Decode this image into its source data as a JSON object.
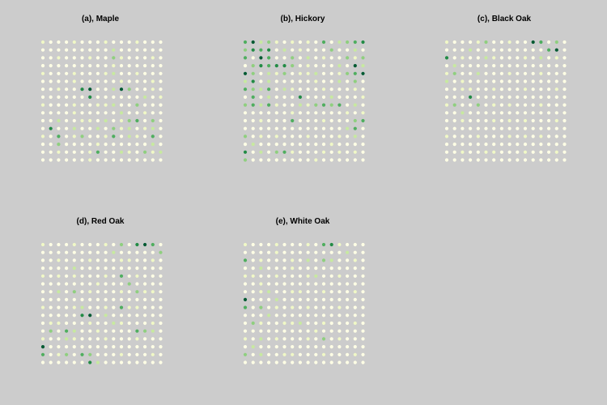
{
  "chart_data": [
    {
      "type": "scatter",
      "title": "(a), Maple",
      "grid_size": 16,
      "palette": [
        "#ffffe5",
        "#f0f8c6",
        "#c7e9a0",
        "#8fcf7f",
        "#4fae5f",
        "#228b45",
        "#005a32"
      ],
      "overrides": [
        [
          9,
          1,
          2
        ],
        [
          9,
          2,
          3
        ],
        [
          9,
          3,
          1
        ],
        [
          9,
          4,
          2
        ],
        [
          4,
          5,
          1
        ],
        [
          10,
          5,
          1
        ],
        [
          14,
          5,
          1
        ],
        [
          5,
          6,
          5
        ],
        [
          6,
          6,
          6
        ],
        [
          9,
          6,
          2
        ],
        [
          10,
          6,
          6
        ],
        [
          11,
          6,
          3
        ],
        [
          6,
          7,
          5
        ],
        [
          13,
          7,
          2
        ],
        [
          15,
          7,
          1
        ],
        [
          7,
          8,
          1
        ],
        [
          9,
          8,
          2
        ],
        [
          12,
          8,
          3
        ],
        [
          4,
          9,
          1
        ],
        [
          10,
          9,
          2
        ],
        [
          13,
          9,
          1
        ],
        [
          2,
          10,
          2
        ],
        [
          5,
          10,
          1
        ],
        [
          8,
          10,
          2
        ],
        [
          11,
          10,
          3
        ],
        [
          12,
          10,
          4
        ],
        [
          14,
          10,
          3
        ],
        [
          1,
          11,
          5
        ],
        [
          4,
          11,
          2
        ],
        [
          7,
          11,
          2
        ],
        [
          9,
          11,
          3
        ],
        [
          10,
          11,
          1
        ],
        [
          11,
          11,
          2
        ],
        [
          13,
          11,
          1
        ],
        [
          14,
          11,
          2
        ],
        [
          2,
          12,
          4
        ],
        [
          5,
          12,
          3
        ],
        [
          9,
          12,
          4
        ],
        [
          11,
          12,
          2
        ],
        [
          14,
          12,
          4
        ],
        [
          2,
          13,
          3
        ],
        [
          7,
          13,
          1
        ],
        [
          14,
          13,
          2
        ],
        [
          7,
          14,
          4
        ],
        [
          10,
          14,
          2
        ],
        [
          11,
          14,
          1
        ],
        [
          13,
          14,
          3
        ],
        [
          15,
          14,
          2
        ],
        [
          6,
          15,
          1
        ]
      ]
    },
    {
      "type": "scatter",
      "title": "(b), Hickory",
      "grid_size": 16,
      "palette": [
        "#ffffe5",
        "#f0f8c6",
        "#c7e9a0",
        "#8fcf7f",
        "#4fae5f",
        "#228b45",
        "#005a32"
      ],
      "overrides": [
        [
          0,
          0,
          4
        ],
        [
          1,
          0,
          6
        ],
        [
          2,
          0,
          2
        ],
        [
          3,
          0,
          3
        ],
        [
          6,
          0,
          1
        ],
        [
          10,
          0,
          4
        ],
        [
          12,
          0,
          2
        ],
        [
          13,
          0,
          3
        ],
        [
          14,
          0,
          4
        ],
        [
          15,
          0,
          5
        ],
        [
          0,
          1,
          3
        ],
        [
          1,
          1,
          5
        ],
        [
          2,
          1,
          4
        ],
        [
          3,
          1,
          5
        ],
        [
          5,
          1,
          2
        ],
        [
          7,
          1,
          1
        ],
        [
          11,
          1,
          3
        ],
        [
          14,
          1,
          2
        ],
        [
          0,
          2,
          4
        ],
        [
          2,
          2,
          6
        ],
        [
          3,
          2,
          4
        ],
        [
          6,
          2,
          3
        ],
        [
          8,
          2,
          2
        ],
        [
          10,
          2,
          1
        ],
        [
          13,
          2,
          3
        ],
        [
          15,
          2,
          3
        ],
        [
          1,
          3,
          3
        ],
        [
          2,
          3,
          5
        ],
        [
          3,
          3,
          4
        ],
        [
          4,
          3,
          5
        ],
        [
          5,
          3,
          5
        ],
        [
          6,
          3,
          3
        ],
        [
          8,
          3,
          1
        ],
        [
          12,
          3,
          2
        ],
        [
          14,
          3,
          6
        ],
        [
          15,
          3,
          2
        ],
        [
          0,
          4,
          6
        ],
        [
          1,
          4,
          3
        ],
        [
          3,
          4,
          2
        ],
        [
          5,
          4,
          3
        ],
        [
          7,
          4,
          1
        ],
        [
          9,
          4,
          2
        ],
        [
          13,
          4,
          3
        ],
        [
          14,
          4,
          4
        ],
        [
          15,
          4,
          6
        ],
        [
          0,
          5,
          2
        ],
        [
          1,
          5,
          5
        ],
        [
          3,
          5,
          2
        ],
        [
          9,
          5,
          1
        ],
        [
          12,
          5,
          2
        ],
        [
          14,
          5,
          3
        ],
        [
          0,
          6,
          4
        ],
        [
          1,
          6,
          3
        ],
        [
          2,
          6,
          2
        ],
        [
          3,
          6,
          4
        ],
        [
          5,
          6,
          2
        ],
        [
          10,
          6,
          1
        ],
        [
          1,
          7,
          4
        ],
        [
          3,
          7,
          2
        ],
        [
          7,
          7,
          5
        ],
        [
          11,
          7,
          2
        ],
        [
          15,
          7,
          1
        ],
        [
          0,
          8,
          3
        ],
        [
          1,
          8,
          4
        ],
        [
          2,
          8,
          2
        ],
        [
          3,
          8,
          4
        ],
        [
          7,
          8,
          2
        ],
        [
          9,
          8,
          3
        ],
        [
          10,
          8,
          4
        ],
        [
          11,
          8,
          3
        ],
        [
          12,
          8,
          4
        ],
        [
          14,
          8,
          2
        ],
        [
          6,
          9,
          1
        ],
        [
          13,
          9,
          1
        ],
        [
          15,
          9,
          1
        ],
        [
          6,
          10,
          4
        ],
        [
          14,
          10,
          3
        ],
        [
          15,
          10,
          4
        ],
        [
          13,
          11,
          2
        ],
        [
          14,
          11,
          4
        ],
        [
          0,
          12,
          3
        ],
        [
          2,
          12,
          1
        ],
        [
          8,
          12,
          1
        ],
        [
          14,
          12,
          2
        ],
        [
          1,
          13,
          2
        ],
        [
          11,
          13,
          1
        ],
        [
          0,
          14,
          5
        ],
        [
          2,
          14,
          2
        ],
        [
          4,
          14,
          3
        ],
        [
          5,
          14,
          4
        ],
        [
          12,
          14,
          1
        ],
        [
          0,
          15,
          3
        ],
        [
          9,
          15,
          1
        ]
      ]
    },
    {
      "type": "scatter",
      "title": "(c), Black Oak",
      "grid_size": 16,
      "palette": [
        "#ffffe5",
        "#f0f8c6",
        "#c7e9a0",
        "#8fcf7f",
        "#4fae5f",
        "#228b45",
        "#005a32"
      ],
      "overrides": [
        [
          5,
          0,
          3
        ],
        [
          11,
          0,
          6
        ],
        [
          12,
          0,
          4
        ],
        [
          14,
          0,
          3
        ],
        [
          3,
          1,
          2
        ],
        [
          13,
          1,
          4
        ],
        [
          14,
          1,
          6
        ],
        [
          0,
          2,
          5
        ],
        [
          5,
          2,
          2
        ],
        [
          12,
          2,
          2
        ],
        [
          1,
          3,
          2
        ],
        [
          1,
          4,
          3
        ],
        [
          4,
          4,
          2
        ],
        [
          0,
          5,
          2
        ],
        [
          2,
          5,
          1
        ],
        [
          3,
          6,
          1
        ],
        [
          3,
          7,
          5
        ],
        [
          1,
          8,
          3
        ],
        [
          4,
          8,
          3
        ],
        [
          6,
          8,
          1
        ],
        [
          2,
          9,
          2
        ],
        [
          8,
          10,
          1
        ],
        [
          10,
          12,
          1
        ],
        [
          5,
          14,
          1
        ]
      ]
    },
    {
      "type": "scatter",
      "title": "(d), Red Oak",
      "grid_size": 16,
      "palette": [
        "#ffffe5",
        "#f0f8c6",
        "#c7e9a0",
        "#8fcf7f",
        "#4fae5f",
        "#228b45",
        "#005a32"
      ],
      "overrides": [
        [
          10,
          0,
          3
        ],
        [
          12,
          0,
          5
        ],
        [
          13,
          0,
          6
        ],
        [
          14,
          0,
          4
        ],
        [
          9,
          1,
          2
        ],
        [
          15,
          1,
          3
        ],
        [
          11,
          2,
          1
        ],
        [
          4,
          3,
          2
        ],
        [
          2,
          4,
          1
        ],
        [
          10,
          4,
          4
        ],
        [
          7,
          5,
          1
        ],
        [
          11,
          5,
          3
        ],
        [
          2,
          6,
          2
        ],
        [
          4,
          6,
          3
        ],
        [
          12,
          6,
          3
        ],
        [
          13,
          6,
          1
        ],
        [
          5,
          8,
          2
        ],
        [
          10,
          8,
          4
        ],
        [
          11,
          8,
          1
        ],
        [
          5,
          9,
          5
        ],
        [
          6,
          9,
          6
        ],
        [
          8,
          9,
          2
        ],
        [
          1,
          10,
          1
        ],
        [
          9,
          10,
          2
        ],
        [
          1,
          11,
          3
        ],
        [
          3,
          11,
          4
        ],
        [
          4,
          11,
          2
        ],
        [
          7,
          11,
          1
        ],
        [
          12,
          11,
          4
        ],
        [
          13,
          11,
          3
        ],
        [
          14,
          11,
          2
        ],
        [
          3,
          12,
          2
        ],
        [
          8,
          12,
          1
        ],
        [
          0,
          13,
          6
        ],
        [
          0,
          14,
          4
        ],
        [
          3,
          14,
          3
        ],
        [
          5,
          14,
          4
        ],
        [
          6,
          14,
          3
        ],
        [
          6,
          15,
          5
        ],
        [
          7,
          15,
          2
        ]
      ]
    },
    {
      "type": "scatter",
      "title": "(e), White Oak",
      "grid_size": 16,
      "palette": [
        "#ffffe5",
        "#f0f8c6",
        "#c7e9a0",
        "#8fcf7f",
        "#4fae5f",
        "#228b45",
        "#005a32"
      ],
      "overrides": [
        [
          10,
          0,
          4
        ],
        [
          11,
          0,
          5
        ],
        [
          4,
          1,
          1
        ],
        [
          13,
          1,
          2
        ],
        [
          0,
          2,
          4
        ],
        [
          8,
          2,
          2
        ],
        [
          10,
          2,
          3
        ],
        [
          11,
          2,
          2
        ],
        [
          2,
          3,
          2
        ],
        [
          6,
          3,
          1
        ],
        [
          1,
          4,
          1
        ],
        [
          9,
          4,
          2
        ],
        [
          2,
          5,
          1
        ],
        [
          3,
          6,
          2
        ],
        [
          7,
          6,
          1
        ],
        [
          0,
          7,
          6
        ],
        [
          4,
          7,
          2
        ],
        [
          0,
          8,
          4
        ],
        [
          2,
          8,
          3
        ],
        [
          6,
          8,
          1
        ],
        [
          3,
          9,
          2
        ],
        [
          1,
          10,
          3
        ],
        [
          5,
          10,
          1
        ],
        [
          7,
          10,
          2
        ],
        [
          9,
          11,
          1
        ],
        [
          2,
          12,
          2
        ],
        [
          10,
          12,
          3
        ],
        [
          1,
          13,
          2
        ],
        [
          0,
          14,
          3
        ],
        [
          2,
          14,
          2
        ],
        [
          5,
          14,
          1
        ]
      ]
    }
  ]
}
